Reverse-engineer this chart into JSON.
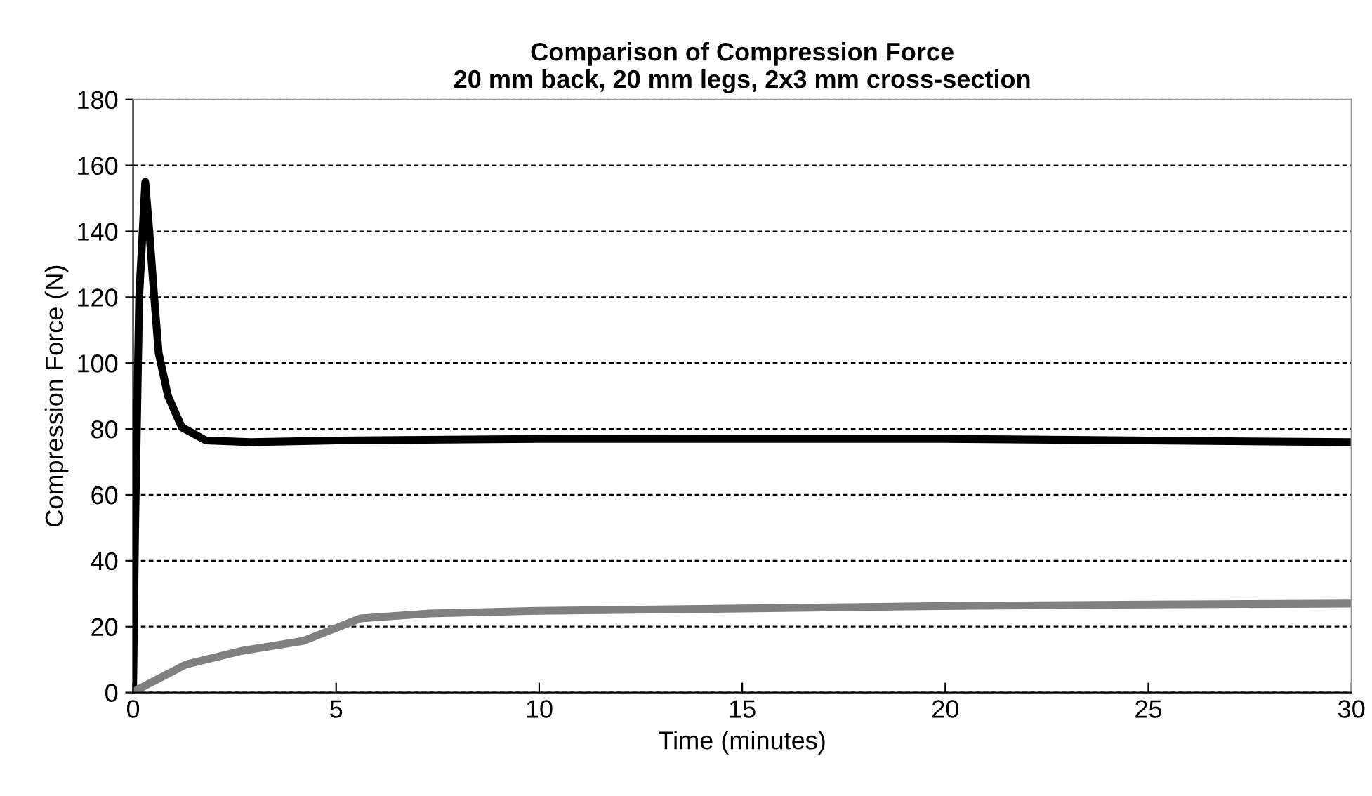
{
  "chart_data": {
    "type": "line",
    "title": "Comparison of Compression Force\n20 mm back, 20 mm legs, 2x3 mm cross-section",
    "xlabel": "Time (minutes)",
    "ylabel": "Compression Force (N)",
    "xlim": [
      0,
      30
    ],
    "xticks": [
      0,
      5,
      10,
      15,
      20,
      25,
      30
    ],
    "ylim": [
      0,
      180
    ],
    "yticks": [
      0,
      20,
      40,
      60,
      80,
      100,
      120,
      140,
      160,
      180
    ],
    "grid": "y",
    "legend": false,
    "line_style": "solid",
    "marker": "none",
    "series": [
      {
        "color": "#000000",
        "x": [
          0,
          0.05,
          0.15,
          0.3,
          0.4,
          0.52,
          0.63,
          0.86,
          1.2,
          1.8,
          2.9,
          5,
          10,
          15,
          20,
          25,
          30
        ],
        "values": [
          0,
          50,
          120,
          155,
          140,
          120,
          103,
          90,
          80.5,
          76.5,
          76,
          76.5,
          77,
          77,
          77,
          76.5,
          76
        ]
      },
      {
        "color": "#808080",
        "x": [
          0,
          0.05,
          1.3,
          2.7,
          4.2,
          5.0,
          5.6,
          7.3,
          10,
          15,
          20.3,
          25,
          30
        ],
        "values": [
          0,
          0.5,
          8.5,
          12.7,
          15.7,
          19.6,
          22.5,
          24,
          24.8,
          25.5,
          26.3,
          26.7,
          27
        ]
      }
    ]
  }
}
